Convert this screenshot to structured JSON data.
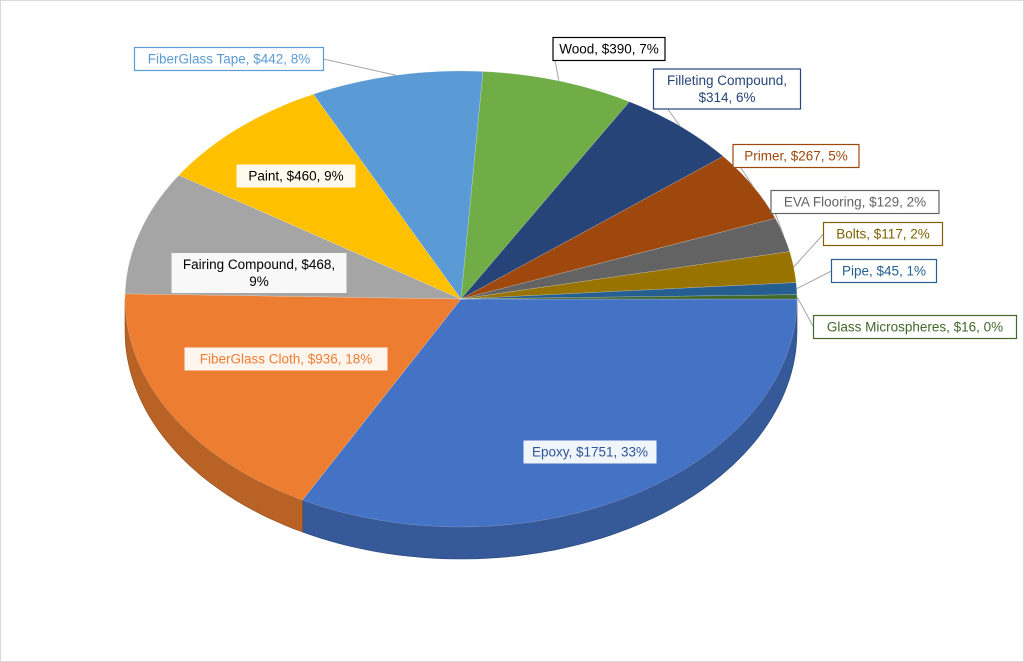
{
  "chart_data": {
    "type": "pie",
    "style": "3d-exploded",
    "title": "",
    "slices": [
      {
        "label": "Epoxy",
        "value": 1751,
        "percent": "33%",
        "color": "#4472c4",
        "data_label": "Epoxy, $1751, 33%"
      },
      {
        "label": "FiberGlass Cloth",
        "value": 936,
        "percent": "18%",
        "color": "#ed7d31",
        "data_label": "FiberGlass Cloth, $936, 18%"
      },
      {
        "label": "Fairing Compound",
        "value": 468,
        "percent": "9%",
        "color": "#a5a5a5",
        "data_label": "Fairing Compound, $468, 9%"
      },
      {
        "label": "Paint",
        "value": 460,
        "percent": "9%",
        "color": "#ffc000",
        "data_label": "Paint, $460, 9%"
      },
      {
        "label": "FiberGlass Tape",
        "value": 442,
        "percent": "8%",
        "color": "#5b9bd5",
        "data_label": "FiberGlass Tape, $442, 8%"
      },
      {
        "label": "Wood",
        "value": 390,
        "percent": "7%",
        "color": "#70ad47",
        "data_label": "Wood, $390, 7%"
      },
      {
        "label": "Filleting Compound",
        "value": 314,
        "percent": "6%",
        "color": "#264478",
        "data_label": "Filleting Compound, $314, 6%"
      },
      {
        "label": "Primer",
        "value": 267,
        "percent": "5%",
        "color": "#9e480e",
        "data_label": "Primer, $267, 5%"
      },
      {
        "label": "EVA Flooring",
        "value": 129,
        "percent": "2%",
        "color": "#636363",
        "data_label": "EVA Flooring, $129, 2%"
      },
      {
        "label": "Bolts",
        "value": 117,
        "percent": "2%",
        "color": "#997300",
        "data_label": "Bolts, $117, 2%"
      },
      {
        "label": "Pipe",
        "value": 45,
        "percent": "1%",
        "color": "#255e91",
        "data_label": "Pipe, $45, 1%"
      },
      {
        "label": "Glass Microspheres",
        "value": 16,
        "percent": "0%",
        "color": "#43682b",
        "data_label": "Glass Microspheres, $16, 0%"
      }
    ]
  }
}
